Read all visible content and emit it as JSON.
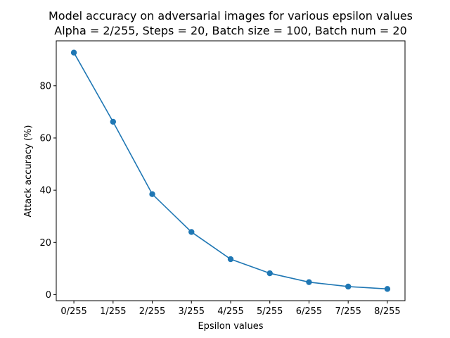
{
  "chart_data": {
    "type": "line",
    "title": "Model accuracy on adversarial images for various epsilon values",
    "subtitle": "Alpha = 2/255, Steps = 20, Batch size = 100, Batch num = 20",
    "xlabel": "Epsilon values",
    "ylabel": "Attack accuracy (%)",
    "categories": [
      "0/255",
      "1/255",
      "2/255",
      "3/255",
      "4/255",
      "5/255",
      "6/255",
      "7/255",
      "8/255"
    ],
    "series": [
      {
        "values": [
          92.7,
          66.2,
          38.5,
          24.0,
          13.6,
          8.2,
          4.8,
          3.1,
          2.2
        ],
        "color": "#1f77b4",
        "marker": "circle"
      }
    ],
    "yticks": [
      0,
      20,
      40,
      60,
      80
    ],
    "ylim": [
      -2.3,
      97.2
    ],
    "grid": false,
    "legend": false
  }
}
